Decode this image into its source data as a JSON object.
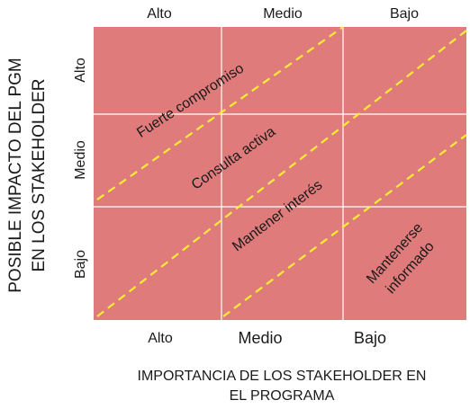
{
  "top_labels": [
    "Alto",
    "Medio",
    "Bajo"
  ],
  "bottom_labels": [
    "Alto",
    "Medio",
    "Bajo"
  ],
  "left_labels": [
    "Alto",
    "Medio",
    "Bajo"
  ],
  "y_axis_title": [
    "POSIBLE IMPACTO DEL PGM",
    "EN LOS STAKEHOLDER"
  ],
  "x_axis_title": [
    "IMPORTANCIA DE LOS STAKEHOLDER EN",
    "EL PROGRAMA"
  ],
  "zones": {
    "fuerte": "Fuerte compromiso",
    "consulta": "Consulta activa",
    "mantener": "Mantener interés",
    "informado": [
      "Mantenerse",
      "informado"
    ]
  },
  "colors": {
    "grid_fill": "#e07b7b",
    "grid_line": "#ffffff",
    "dashed_line": "#ffee33"
  }
}
